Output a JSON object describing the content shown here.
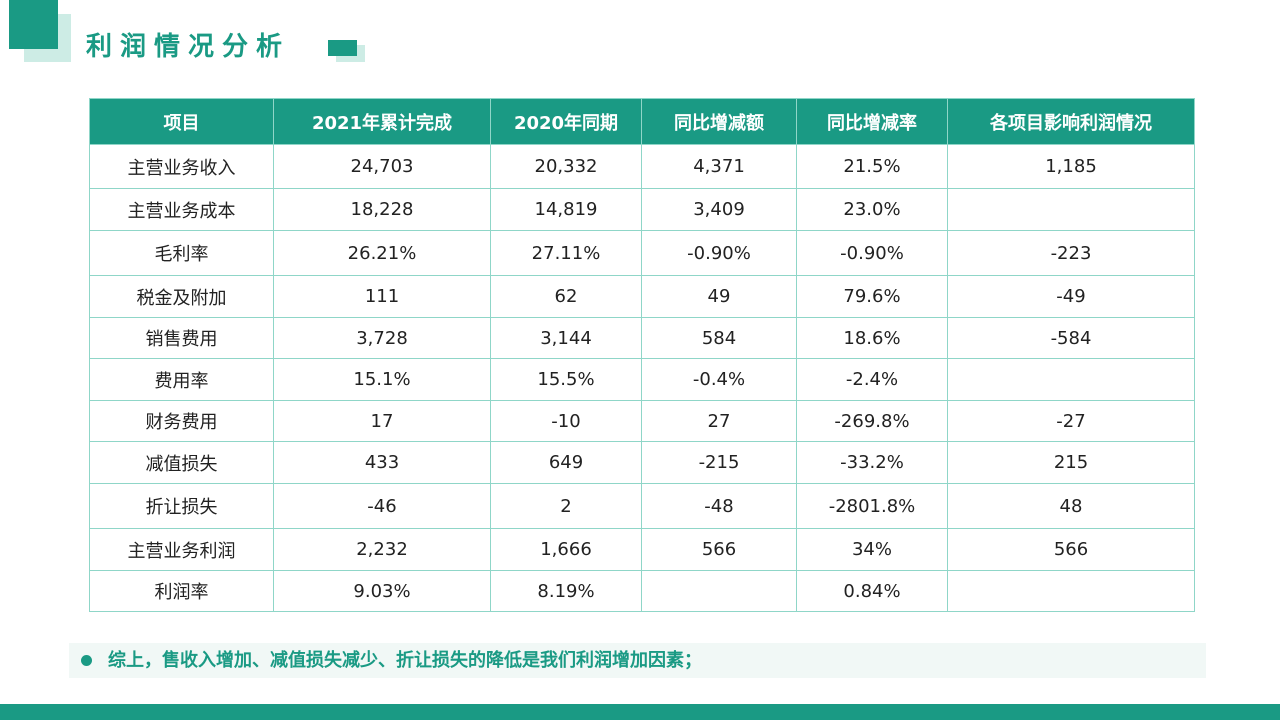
{
  "title": "利润情况分析",
  "colors": {
    "accent": "#1a9a84",
    "accent_light": "#cdece5",
    "border": "#8fd6c8",
    "summary_bg": "#f1f8f6"
  },
  "table": {
    "headers": [
      "项目",
      "2021年累计完成",
      "2020年同期",
      "同比增减额",
      "同比增减率",
      "各项目影响利润情况"
    ],
    "rows": [
      [
        "主营业务收入",
        "24,703",
        "20,332",
        "4,371",
        "21.5%",
        "1,185"
      ],
      [
        "主营业务成本",
        "18,228",
        "14,819",
        "3,409",
        "23.0%",
        ""
      ],
      [
        "毛利率",
        "26.21%",
        "27.11%",
        "-0.90%",
        "-0.90%",
        "-223"
      ],
      [
        "税金及附加",
        "111",
        "62",
        "49",
        "79.6%",
        "-49"
      ],
      [
        "销售费用",
        "3,728",
        "3,144",
        "584",
        "18.6%",
        "-584"
      ],
      [
        "费用率",
        "15.1%",
        "15.5%",
        "-0.4%",
        "-2.4%",
        ""
      ],
      [
        "财务费用",
        "17",
        "-10",
        "27",
        "-269.8%",
        "-27"
      ],
      [
        "减值损失",
        "433",
        "649",
        "-215",
        "-33.2%",
        "215"
      ],
      [
        "折让损失",
        "-46",
        "2",
        "-48",
        "-2801.8%",
        "48"
      ],
      [
        "主营业务利润",
        "2,232",
        "1,666",
        "566",
        "34%",
        "566"
      ],
      [
        "利润率",
        "9.03%",
        "8.19%",
        "",
        "0.84%",
        ""
      ]
    ]
  },
  "summary": {
    "text": "综上，售收入增加、减值损失减少、折让损失的降低是我们利润增加因素；"
  }
}
